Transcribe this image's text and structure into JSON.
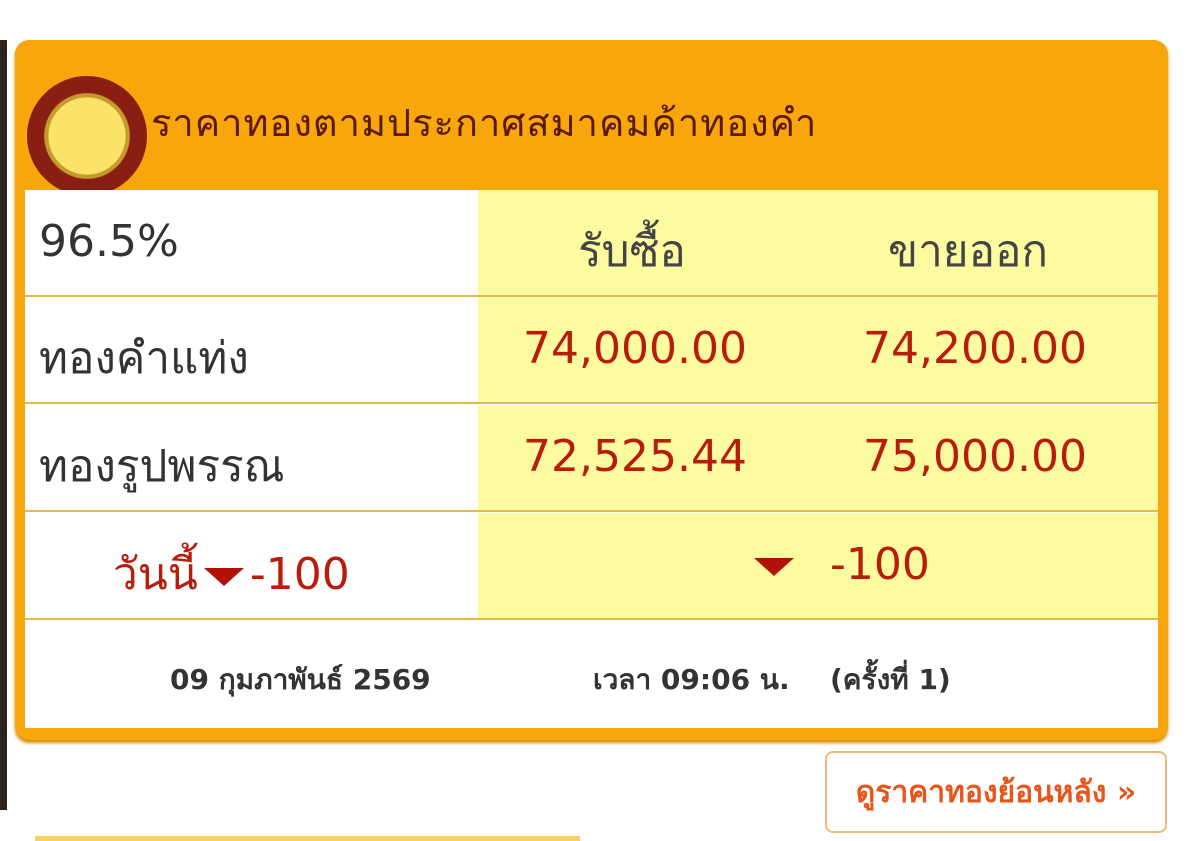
{
  "title": "ราคาทองตามประกาศสมาคมค้าทองคำ",
  "logo_icon": "gold-traders-association-logo",
  "columns": {
    "purity": "96.5%",
    "buy": "รับซื้อ",
    "sell": "ขายออก"
  },
  "rows": [
    {
      "label": "ทองคำแท่ง",
      "buy": "74,000.00",
      "sell": "74,200.00"
    },
    {
      "label": "ทองรูปพรรณ",
      "buy": "72,525.44",
      "sell": "75,000.00"
    }
  ],
  "change": {
    "label": "วันนี้",
    "left": "-100",
    "right": "-100",
    "direction": "down",
    "color": "#b3120a"
  },
  "footer": {
    "date": "09 กุมภาพันธ์ 2569",
    "time": "เวลา 09:06 น.",
    "round": "(ครั้งที่ 1)"
  },
  "history_button": "ดูราคาทองย้อนหลัง »",
  "colors": {
    "accent": "#f7a60c",
    "highlight": "#fdfba0",
    "price": "#b81c0b"
  }
}
